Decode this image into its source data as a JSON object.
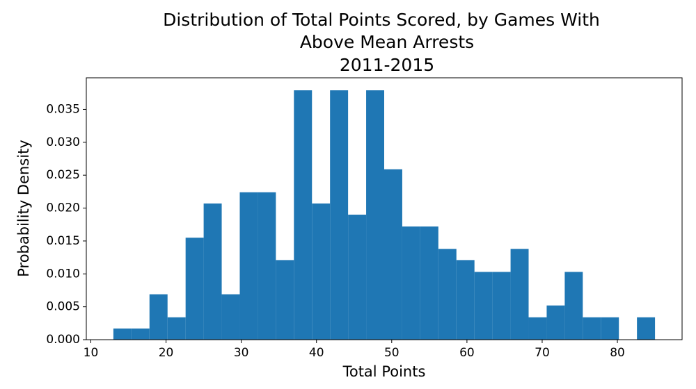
{
  "chart_data": {
    "type": "histogram",
    "title": [
      "Distribution of Total Points Scored, by Games With",
      "Above Mean Arrests",
      "2011-2015"
    ],
    "x_label": "Total Points",
    "y_label": "Probability Density",
    "bins": [
      13,
      15.4,
      17.8,
      20.2,
      22.6,
      25,
      27.4,
      29.8,
      32.2,
      34.6,
      37,
      39.4,
      41.8,
      44.2,
      46.6,
      49,
      51.4,
      53.8,
      56.2,
      58.6,
      61,
      63.4,
      65.8,
      68.2,
      70.6,
      73,
      75.4,
      77.8,
      80.2,
      82.6,
      85
    ],
    "values": [
      0.0017,
      0.0017,
      0.0069,
      0.0034,
      0.0155,
      0.0207,
      0.0069,
      0.0224,
      0.0224,
      0.0121,
      0.0379,
      0.0207,
      0.0379,
      0.019,
      0.0379,
      0.0259,
      0.0172,
      0.0172,
      0.0138,
      0.0121,
      0.0103,
      0.0103,
      0.0138,
      0.0034,
      0.0052,
      0.0103,
      0.0034,
      0.0034,
      0,
      0.0034
    ],
    "color": "#1f77b4",
    "xlim": [
      9.4,
      88.6
    ],
    "xticks": [
      10,
      20,
      30,
      40,
      50,
      60,
      70,
      80
    ],
    "ylim": [
      0,
      0.0398
    ],
    "yticks": [
      {
        "value": 0,
        "label": "0.000"
      },
      {
        "value": 0.005,
        "label": "0.005"
      },
      {
        "value": 0.01,
        "label": "0.010"
      },
      {
        "value": 0.015,
        "label": "0.015"
      },
      {
        "value": 0.02,
        "label": "0.020"
      },
      {
        "value": 0.025,
        "label": "0.025"
      },
      {
        "value": 0.03,
        "label": "0.030"
      },
      {
        "value": 0.035,
        "label": "0.035"
      }
    ]
  }
}
